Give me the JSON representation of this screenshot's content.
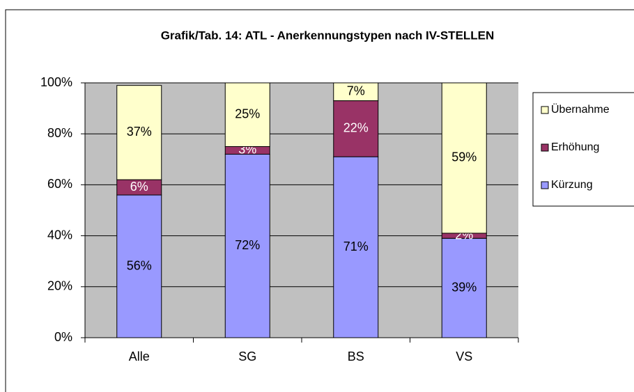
{
  "chart_data": {
    "type": "bar",
    "stacked": true,
    "title": "Grafik/Tab. 14: ATL - Anerkennungstypen nach IV-STELLEN",
    "categories": [
      "Alle",
      "SG",
      "BS",
      "VS"
    ],
    "series": [
      {
        "name": "Kürzung",
        "color": "#9999ff",
        "values": [
          56,
          72,
          71,
          39
        ],
        "value_labels": [
          "56%",
          "72%",
          "71%",
          "39%"
        ]
      },
      {
        "name": "Erhöhung",
        "color": "#993366",
        "values": [
          6,
          3,
          22,
          2
        ],
        "value_labels": [
          "6%",
          "3%",
          "22%",
          "2%"
        ]
      },
      {
        "name": "Übernahme",
        "color": "#ffffcc",
        "values": [
          37,
          25,
          7,
          59
        ],
        "value_labels": [
          "37%",
          "25%",
          "7%",
          "59%"
        ]
      }
    ],
    "ylim": [
      0,
      100
    ],
    "yticks": [
      {
        "value": 0,
        "label": "0%"
      },
      {
        "value": 20,
        "label": "20%"
      },
      {
        "value": 40,
        "label": "40%"
      },
      {
        "value": 60,
        "label": "60%"
      },
      {
        "value": 80,
        "label": "80%"
      },
      {
        "value": 100,
        "label": "100%"
      }
    ],
    "grid": true,
    "legend": "right"
  }
}
